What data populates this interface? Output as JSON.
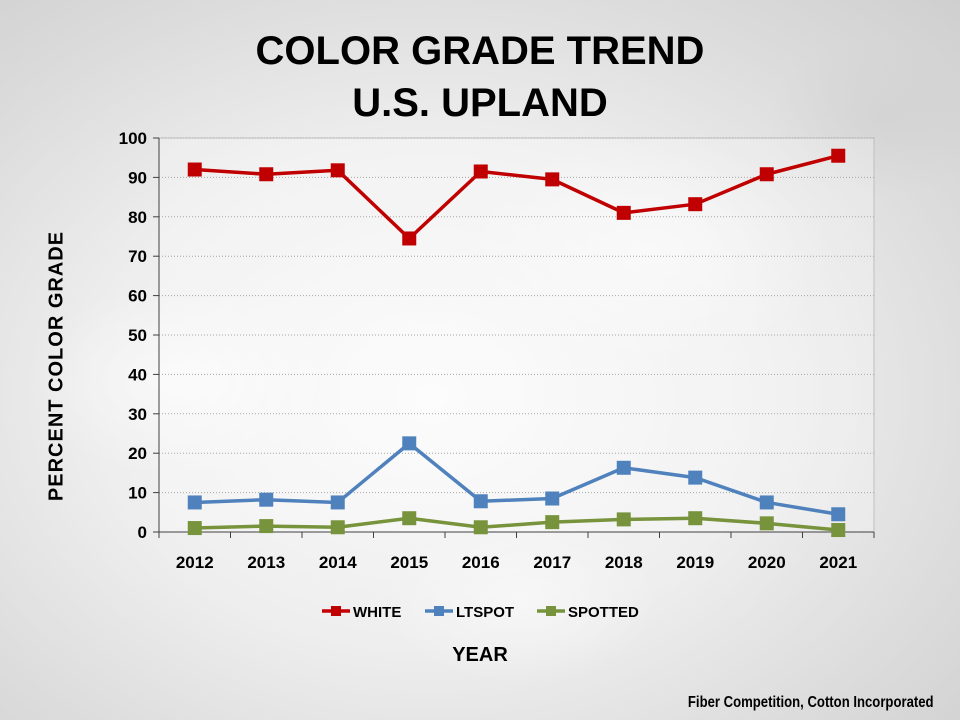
{
  "chart_data": {
    "type": "line",
    "title": "COLOR GRADE TREND",
    "subtitle": "U.S. UPLAND",
    "xlabel": "YEAR",
    "ylabel": "PERCENT COLOR GRADE",
    "categories": [
      "2012",
      "2013",
      "2014",
      "2015",
      "2016",
      "2017",
      "2018",
      "2019",
      "2020",
      "2021"
    ],
    "ylim": [
      0,
      100
    ],
    "yticks": [
      0,
      10,
      20,
      30,
      40,
      50,
      60,
      70,
      80,
      90,
      100
    ],
    "grid": true,
    "legend_position": "bottom",
    "series": [
      {
        "name": "WHITE",
        "color": "#C00000",
        "values": [
          92,
          90.8,
          91.8,
          74.5,
          91.5,
          89.5,
          81,
          83.2,
          90.8,
          95.5
        ]
      },
      {
        "name": "LTSPOT",
        "color": "#4F81BD",
        "values": [
          7.5,
          8.2,
          7.5,
          22.5,
          7.8,
          8.5,
          16.3,
          13.8,
          7.5,
          4.5
        ]
      },
      {
        "name": "SPOTTED",
        "color": "#77933C",
        "values": [
          1,
          1.5,
          1.2,
          3.5,
          1.2,
          2.5,
          3.2,
          3.5,
          2.2,
          0.5
        ]
      }
    ]
  },
  "source": "Fiber Competition, Cotton Incorporated"
}
